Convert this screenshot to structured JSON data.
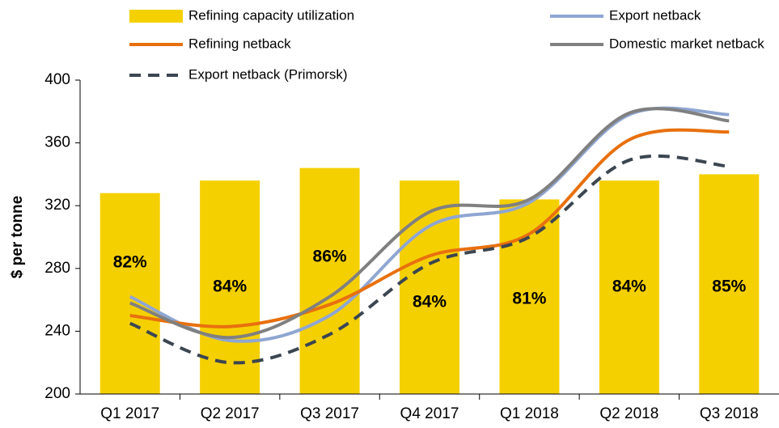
{
  "chart_data": {
    "type": "bar-line",
    "y_label": "$ per tonne",
    "categories": [
      "Q1 2017",
      "Q2 2017",
      "Q3 2017",
      "Q4 2017",
      "Q1 2018",
      "Q2 2018",
      "Q3 2018"
    ],
    "ylim": [
      200,
      400
    ],
    "yticks": [
      200,
      240,
      280,
      320,
      360,
      400
    ],
    "y2lim": [
      50,
      100
    ],
    "series": [
      {
        "name": "Refining capacity utilization",
        "type": "bar",
        "axis": "y2",
        "color": "#f5d000",
        "values": [
          82,
          84,
          86,
          84,
          81,
          84,
          85
        ],
        "value_labels": [
          "82%",
          "84%",
          "86%",
          "84%",
          "81%",
          "84%",
          "85%"
        ]
      },
      {
        "name": "Export netback",
        "type": "line",
        "color": "#8fa6d2",
        "values": [
          262,
          234,
          250,
          307,
          322,
          378,
          378
        ]
      },
      {
        "name": "Refining netback",
        "type": "line",
        "color": "#e8700e",
        "values": [
          250,
          243,
          257,
          288,
          302,
          362,
          367
        ]
      },
      {
        "name": "Domestic market netback",
        "type": "line",
        "color": "#808080",
        "values": [
          258,
          236,
          262,
          316,
          324,
          379,
          374
        ]
      },
      {
        "name": "Export netback (Primorsk)",
        "type": "line",
        "dashed": true,
        "color": "#3b4651",
        "values": [
          245,
          220,
          238,
          283,
          300,
          349,
          345
        ]
      }
    ]
  }
}
